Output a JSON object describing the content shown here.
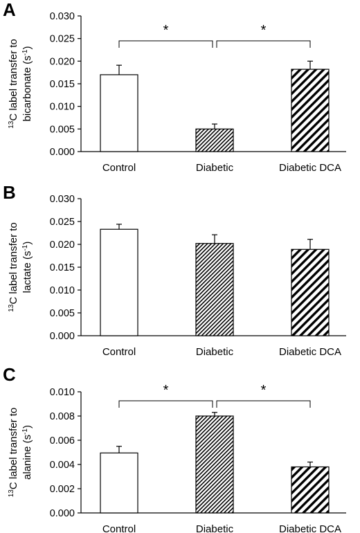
{
  "colors": {
    "axis": "#000000",
    "bar_outline": "#000000",
    "bar_empty": "#ffffff",
    "hatch": "#000000"
  },
  "chart_data": [
    {
      "panel_label": "A",
      "type": "bar",
      "ylabel_sup": "13",
      "ylabel_line1": "C label transfer to",
      "ylabel_line2_pre": "bicarbonate (s",
      "ylabel_line2_sup": "-1",
      "ylabel_line2_post": ")",
      "ylim": [
        0,
        0.03
      ],
      "yticks": [
        "0.000",
        "0.005",
        "0.010",
        "0.015",
        "0.020",
        "0.025",
        "0.030"
      ],
      "grid": false,
      "categories": [
        "Control",
        "Diabetic",
        "Diabetic DCA"
      ],
      "values": [
        0.017,
        0.005,
        0.0182
      ],
      "errors": [
        0.0021,
        0.0011,
        0.0018
      ],
      "patterns": [
        "plain",
        "fine-hatch",
        "wide-hatch"
      ],
      "significance": [
        {
          "from": 0,
          "to": 1,
          "label": "*"
        },
        {
          "from": 1,
          "to": 2,
          "label": "*"
        }
      ]
    },
    {
      "panel_label": "B",
      "type": "bar",
      "ylabel_sup": "13",
      "ylabel_line1": "C label transfer to",
      "ylabel_line2_pre": "lactate (s",
      "ylabel_line2_sup": "-1",
      "ylabel_line2_post": ")",
      "ylim": [
        0,
        0.03
      ],
      "yticks": [
        "0.000",
        "0.005",
        "0.010",
        "0.015",
        "0.020",
        "0.025",
        "0.030"
      ],
      "grid": false,
      "categories": [
        "Control",
        "Diabetic",
        "Diabetic DCA"
      ],
      "values": [
        0.0233,
        0.0202,
        0.0189
      ],
      "errors": [
        0.0011,
        0.0019,
        0.0022
      ],
      "patterns": [
        "plain",
        "fine-hatch",
        "wide-hatch"
      ],
      "significance": []
    },
    {
      "panel_label": "C",
      "type": "bar",
      "ylabel_sup": "13",
      "ylabel_line1": "C label transfer to",
      "ylabel_line2_pre": "alanine (s",
      "ylabel_line2_sup": "-1",
      "ylabel_line2_post": ")",
      "ylim": [
        0,
        0.01
      ],
      "yticks": [
        "0.000",
        "0.002",
        "0.004",
        "0.006",
        "0.008",
        "0.010"
      ],
      "grid": false,
      "categories": [
        "Control",
        "Diabetic",
        "Diabetic DCA"
      ],
      "values": [
        0.00495,
        0.008,
        0.0038
      ],
      "errors": [
        0.00055,
        0.0003,
        0.0004
      ],
      "patterns": [
        "plain",
        "fine-hatch",
        "wide-hatch"
      ],
      "significance": [
        {
          "from": 0,
          "to": 1,
          "label": "*"
        },
        {
          "from": 1,
          "to": 2,
          "label": "*"
        }
      ]
    }
  ]
}
